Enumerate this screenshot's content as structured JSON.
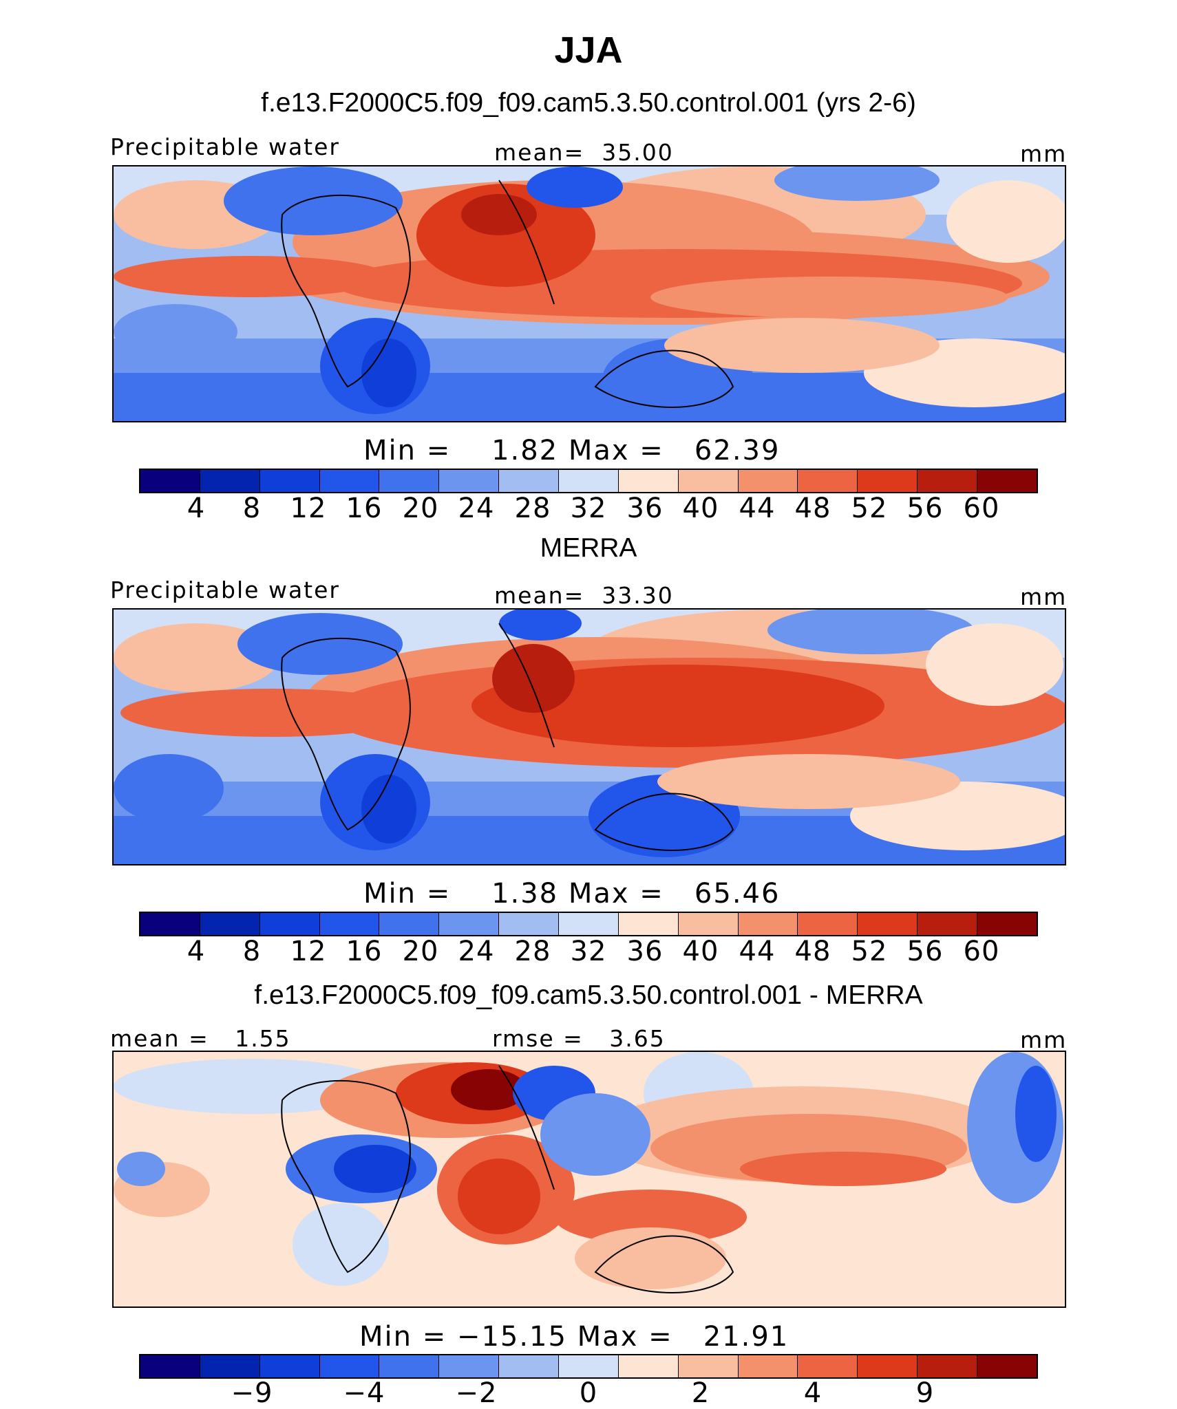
{
  "title": "JJA",
  "panels": [
    {
      "id": "model",
      "heading": "f.e13.F2000C5.f09_f09.cam5.3.50.control.001 (yrs 2-6)",
      "left_label": "Precipitable water",
      "center_label": "mean=  35.00",
      "units": "mm",
      "stats_label": "Min =    1.82 Max =   62.39",
      "min": 1.82,
      "max": 62.39,
      "mean": 35.0,
      "colorbar_ticks": [
        "4",
        "8",
        "12",
        "16",
        "20",
        "24",
        "28",
        "32",
        "36",
        "40",
        "44",
        "48",
        "52",
        "56",
        "60"
      ]
    },
    {
      "id": "obs",
      "heading": "MERRA",
      "left_label": "Precipitable water",
      "center_label": "mean=  33.30",
      "units": "mm",
      "stats_label": "Min =    1.38 Max =   65.46",
      "min": 1.38,
      "max": 65.46,
      "mean": 33.3,
      "colorbar_ticks": [
        "4",
        "8",
        "12",
        "16",
        "20",
        "24",
        "28",
        "32",
        "36",
        "40",
        "44",
        "48",
        "52",
        "56",
        "60"
      ]
    },
    {
      "id": "diff",
      "heading": "f.e13.F2000C5.f09_f09.cam5.3.50.control.001 - MERRA",
      "left_label": "mean =   1.55",
      "center_label": "rmse =   3.65",
      "units": "mm",
      "stats_label": "Min = −15.15 Max =   21.91",
      "min": -15.15,
      "max": 21.91,
      "mean": 1.55,
      "rmse": 3.65,
      "colorbar_ticks": [
        "−9",
        "−4",
        "−2",
        "0",
        "2",
        "4",
        "9"
      ]
    }
  ],
  "colors": {
    "palette": [
      "#08007d",
      "#0324ae",
      "#0f3fd8",
      "#2255ea",
      "#3f72ec",
      "#6c95ef",
      "#a1bdf2",
      "#d2e1f8",
      "#fde4d3",
      "#f9bea0",
      "#f3916c",
      "#ec6441",
      "#dc3a1a",
      "#b81e0e",
      "#880404"
    ]
  }
}
